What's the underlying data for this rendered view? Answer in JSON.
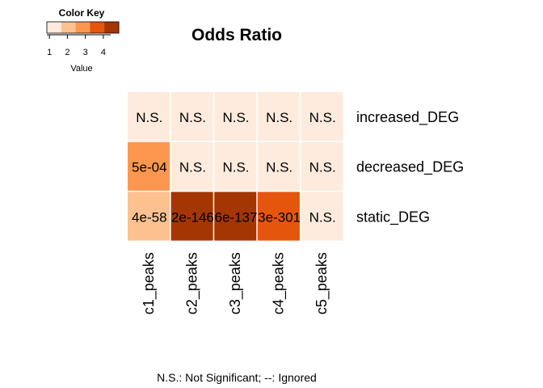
{
  "chart_data": {
    "type": "heatmap",
    "title": "Odds Ratio",
    "footnote": "N.S.: Not Significant; --: Ignored",
    "columns": [
      "c1_peaks",
      "c2_peaks",
      "c3_peaks",
      "c4_peaks",
      "c5_peaks"
    ],
    "rows": [
      "increased_DEG",
      "decreased_DEG",
      "static_DEG"
    ],
    "cell_labels": [
      [
        "N.S.",
        "N.S.",
        "N.S.",
        "N.S.",
        "N.S."
      ],
      [
        "5e-04",
        "N.S.",
        "N.S.",
        "N.S.",
        "N.S."
      ],
      [
        "4e-58",
        "2e-146",
        "6e-137",
        "3e-301",
        "N.S."
      ]
    ],
    "values": [
      [
        1.0,
        1.0,
        1.0,
        1.0,
        1.0
      ],
      [
        2.6,
        1.0,
        1.0,
        1.0,
        1.0
      ],
      [
        1.8,
        4.2,
        4.2,
        3.3,
        1.0
      ]
    ],
    "color_key": {
      "title": "Color Key",
      "xlabel": "Value",
      "ticks": [
        1,
        2,
        3,
        4
      ],
      "range": [
        0.5,
        4.5
      ],
      "colors": [
        "#FEEBDD",
        "#FDC190",
        "#FD9750",
        "#E5560D",
        "#A33603"
      ]
    }
  }
}
